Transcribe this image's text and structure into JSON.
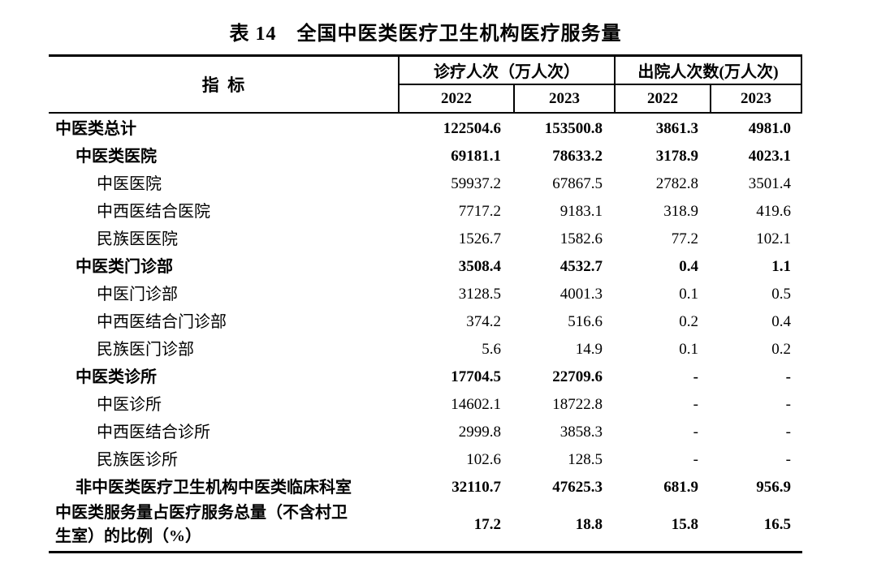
{
  "title": "表 14　全国中医类医疗卫生机构医疗服务量",
  "table": {
    "indicator_header": "指  标",
    "col_groups": [
      {
        "label": "诊疗人次（万人次）",
        "years": [
          "2022",
          "2023"
        ]
      },
      {
        "label": "出院人次数(万人次)",
        "years": [
          "2022",
          "2023"
        ]
      }
    ],
    "rows": [
      {
        "label": "中医类总计",
        "indent": 0,
        "bold": true,
        "values": [
          "122504.6",
          "153500.8",
          "3861.3",
          "4981.0"
        ]
      },
      {
        "label": "中医类医院",
        "indent": 1,
        "bold": true,
        "values": [
          "69181.1",
          "78633.2",
          "3178.9",
          "4023.1"
        ]
      },
      {
        "label": "中医医院",
        "indent": 2,
        "bold": false,
        "values": [
          "59937.2",
          "67867.5",
          "2782.8",
          "3501.4"
        ]
      },
      {
        "label": "中西医结合医院",
        "indent": 2,
        "bold": false,
        "values": [
          "7717.2",
          "9183.1",
          "318.9",
          "419.6"
        ]
      },
      {
        "label": "民族医医院",
        "indent": 2,
        "bold": false,
        "values": [
          "1526.7",
          "1582.6",
          "77.2",
          "102.1"
        ]
      },
      {
        "label": "中医类门诊部",
        "indent": 1,
        "bold": true,
        "values": [
          "3508.4",
          "4532.7",
          "0.4",
          "1.1"
        ]
      },
      {
        "label": "中医门诊部",
        "indent": 2,
        "bold": false,
        "values": [
          "3128.5",
          "4001.3",
          "0.1",
          "0.5"
        ]
      },
      {
        "label": "中西医结合门诊部",
        "indent": 2,
        "bold": false,
        "values": [
          "374.2",
          "516.6",
          "0.2",
          "0.4"
        ]
      },
      {
        "label": "民族医门诊部",
        "indent": 2,
        "bold": false,
        "values": [
          "5.6",
          "14.9",
          "0.1",
          "0.2"
        ]
      },
      {
        "label": "中医类诊所",
        "indent": 1,
        "bold": true,
        "values": [
          "17704.5",
          "22709.6",
          "-",
          "-"
        ]
      },
      {
        "label": "中医诊所",
        "indent": 2,
        "bold": false,
        "values": [
          "14602.1",
          "18722.8",
          "-",
          "-"
        ]
      },
      {
        "label": "中西医结合诊所",
        "indent": 2,
        "bold": false,
        "values": [
          "2999.8",
          "3858.3",
          "-",
          "-"
        ]
      },
      {
        "label": "民族医诊所",
        "indent": 2,
        "bold": false,
        "values": [
          "102.6",
          "128.5",
          "-",
          "-"
        ]
      },
      {
        "label": "非中医类医疗卫生机构中医类临床科室",
        "indent": 1,
        "bold": true,
        "values": [
          "32110.7",
          "47625.3",
          "681.9",
          "956.9"
        ]
      },
      {
        "label": "中医类服务量占医疗服务总量（不含村卫\n生室）的比例（%）",
        "indent": 0,
        "bold": true,
        "values": [
          "17.2",
          "18.8",
          "15.8",
          "16.5"
        ]
      }
    ]
  }
}
